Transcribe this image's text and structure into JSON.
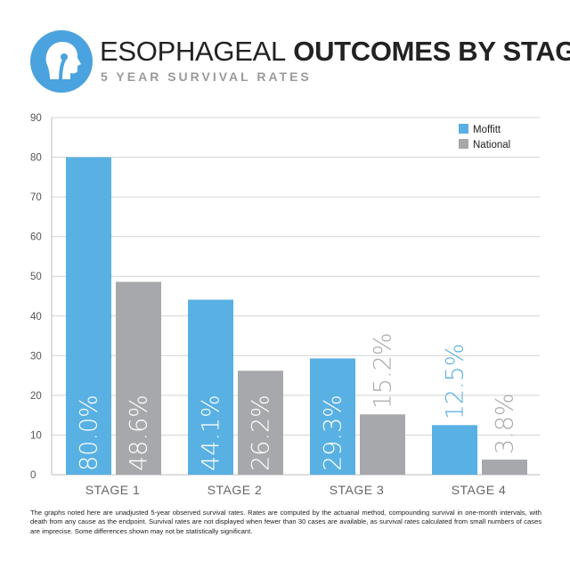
{
  "header": {
    "title_light": "ESOPHAGEAL",
    "title_bold": "OUTCOMES BY STAGE",
    "subtitle": "5 YEAR SURVIVAL RATES",
    "icon": "head-neck-anatomy-icon"
  },
  "colors": {
    "moffitt": "#59b0e3",
    "national": "#a7a8ab",
    "logo": "#4aa3de"
  },
  "chart_data": {
    "type": "bar",
    "categories": [
      "STAGE 1",
      "STAGE 2",
      "STAGE 3",
      "STAGE 4"
    ],
    "series": [
      {
        "name": "Moffitt",
        "values": [
          80.0,
          44.1,
          29.3,
          12.5
        ],
        "labels": [
          "80.0%",
          "44.1%",
          "29.3%",
          "12.5%"
        ]
      },
      {
        "name": "National",
        "values": [
          48.6,
          26.2,
          15.2,
          3.8
        ],
        "labels": [
          "48.6%",
          "26.2%",
          "15.2%",
          "3.8%"
        ]
      }
    ],
    "ylim": [
      0,
      90
    ],
    "yticks": [
      0,
      10,
      20,
      30,
      40,
      50,
      60,
      70,
      80,
      90
    ],
    "grid": true,
    "legend": "top-right",
    "title": "",
    "xlabel": "",
    "ylabel": ""
  },
  "footnote": "The graphs noted here are unadjusted 5-year observed survival rates. Rates are computed by the actuarial method, compounding survival in one-month intervals, with death from any cause as the endpoint. Survival rates are not displayed when fewer than 30 cases are available, as survival rates calculated from small numbers of cases are imprecise. Some differences shown may not be statistically significant."
}
